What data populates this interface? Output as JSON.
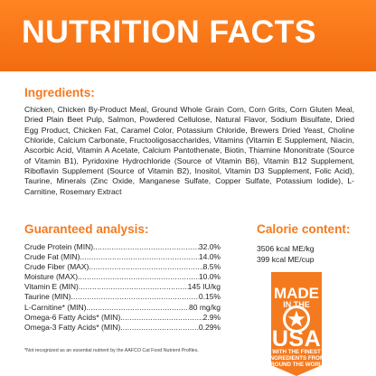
{
  "header": {
    "title": "NUTRITION FACTS"
  },
  "ingredients": {
    "heading": "Ingredients:",
    "text": "Chicken, Chicken By-Product Meal, Ground Whole Grain Corn, Corn Grits, Corn Gluten Meal, Dried Plain Beet Pulp, Salmon, Powdered Cellulose, Natural Flavor, Sodium Bisulfate, Dried Egg Product, Chicken Fat, Caramel Color, Potassium Chloride, Brewers Dried Yeast, Choline Chloride, Calcium Carbonate, Fructooligosaccharides, Vitamins (Vitamin E Supplement, Niacin, Ascorbic Acid, Vitamin A Acetate, Calcium Pantothenate, Biotin, Thiamine Mononitrate (Source of Vitamin B1), Pyridoxine Hydrochloride (Source of Vitamin B6), Vitamin B12 Supplement, Riboflavin Supplement (Source of Vitamin B2), Inositol, Vitamin D3 Supplement, Folic Acid), Taurine, Minerals (Zinc Oxide, Manganese Sulfate, Copper Sulfate, Potassium Iodide), L-Carnitine, Rosemary Extract"
  },
  "analysis": {
    "heading": "Guaranteed analysis:",
    "rows": [
      {
        "label": "Crude Protein (MIN).",
        "value": "32.0%"
      },
      {
        "label": "Crude Fat (MIN).",
        "value": "14.0%"
      },
      {
        "label": "Crude Fiber (MAX).",
        "value": "8.5%"
      },
      {
        "label": "Moisture (MAX).",
        "value": "10.0%"
      },
      {
        "label": "Vitamin E (MIN).",
        "value": "145 IU/kg"
      },
      {
        "label": "Taurine (MIN).",
        "value": "0.15%"
      },
      {
        "label": "L-Carnitine* (MIN).",
        "value": "80 mg/kg"
      },
      {
        "label": "Omega-6 Fatty Acids* (MIN).",
        "value": "2.9%"
      },
      {
        "label": "Omega-3 Fatty Acids* (MIN).",
        "value": "0.29%"
      }
    ],
    "footnote": "*Not recognized as an essential nutrient by the AAFCO Cat Food Nutrient Profiles."
  },
  "calorie": {
    "heading": "Calorie content:",
    "line1": "3506 kcal ME/kg",
    "line2": "399 kcal ME/cup"
  },
  "badge": {
    "line1": "MADE",
    "line2": "IN THE",
    "line3": "USA",
    "line4": "WITH THE FINEST",
    "line5": "INGREDIENTS FROM",
    "line6": "AROUND THE WORLD"
  },
  "colors": {
    "brand_orange": "#f47a1f",
    "banner_orange": "#f26c10",
    "text": "#222222"
  }
}
